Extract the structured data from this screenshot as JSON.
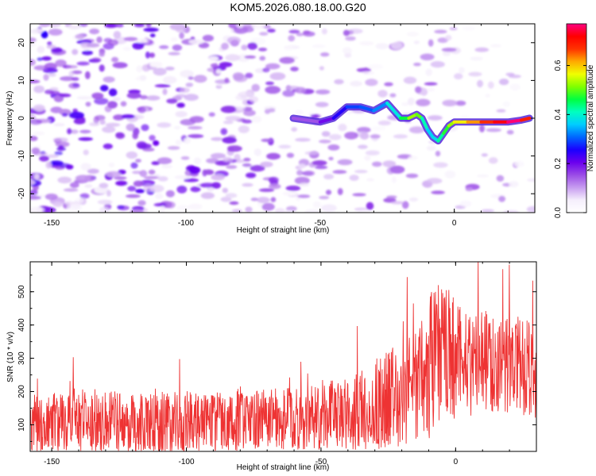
{
  "title": "KOM5.2026.080.18.00.G20",
  "chart_data": [
    {
      "type": "heatmap",
      "name": "spectrogram",
      "title": "KOM5.2026.080.18.00.G20",
      "xlabel": "Height of straight line (km)",
      "ylabel": "Frequency (Hz)",
      "xlim": [
        -158,
        30
      ],
      "ylim": [
        -25,
        25
      ],
      "xticks": [
        -150,
        -100,
        -50,
        0
      ],
      "yticks": [
        -20,
        -10,
        0,
        10,
        20
      ],
      "ridge": {
        "description_x": [
          -60,
          -50,
          -45,
          -40,
          -35,
          -30,
          -25,
          -20,
          -17,
          -14,
          -12,
          -10,
          -8,
          -6,
          -4,
          -2,
          0,
          5,
          10,
          15,
          20,
          25,
          28
        ],
        "freq": [
          0,
          -1,
          0,
          3,
          3,
          2,
          4,
          0,
          0,
          1,
          0,
          -3,
          -5,
          -6,
          -4,
          -2,
          -1,
          -1,
          -1,
          -1,
          -1,
          -0.5,
          0
        ],
        "amplitude": [
          0.12,
          0.18,
          0.22,
          0.28,
          0.3,
          0.3,
          0.35,
          0.42,
          0.5,
          0.55,
          0.45,
          0.38,
          0.35,
          0.4,
          0.45,
          0.5,
          0.55,
          0.6,
          0.65,
          0.7,
          0.75,
          0.78,
          0.6
        ]
      }
    },
    {
      "type": "colorbar",
      "name": "colorbar",
      "label": "Normalized spectral amplitude",
      "range": [
        0.0,
        0.77
      ],
      "ticks": [
        0.0,
        0.2,
        0.4,
        0.6
      ],
      "tick_labels": [
        "0.0",
        "0.2",
        "0.4",
        "0.6"
      ],
      "colors": [
        "#ffffff",
        "#f5eefc",
        "#c79cf0",
        "#9a4be6",
        "#6a00ee",
        "#1a00ff",
        "#0066ff",
        "#00ccff",
        "#00ffc0",
        "#00ff40",
        "#80ff00",
        "#f0ff00",
        "#ffaa00",
        "#ff3300",
        "#ff0000",
        "#ff0080"
      ]
    },
    {
      "type": "line",
      "name": "snr",
      "xlabel": "Height of straight line (km)",
      "ylabel": "SNR (10 * v/v)",
      "xlim": [
        -158,
        30
      ],
      "ylim": [
        20,
        590
      ],
      "xticks": [
        -150,
        -100,
        -50,
        0
      ],
      "yticks": [
        100,
        200,
        300,
        400,
        500
      ],
      "color": "#ee3333",
      "trend_x": [
        -158,
        -140,
        -120,
        -100,
        -80,
        -60,
        -50,
        -40,
        -30,
        -25,
        -20,
        -15,
        -10,
        -8,
        -5,
        0,
        10,
        20,
        30
      ],
      "trend_mean": [
        110,
        115,
        110,
        108,
        112,
        118,
        125,
        135,
        155,
        175,
        200,
        220,
        260,
        300,
        320,
        300,
        290,
        280,
        270
      ],
      "trend_spread": [
        90,
        95,
        95,
        90,
        90,
        95,
        100,
        110,
        130,
        150,
        170,
        190,
        210,
        230,
        220,
        180,
        160,
        150,
        150
      ]
    }
  ]
}
